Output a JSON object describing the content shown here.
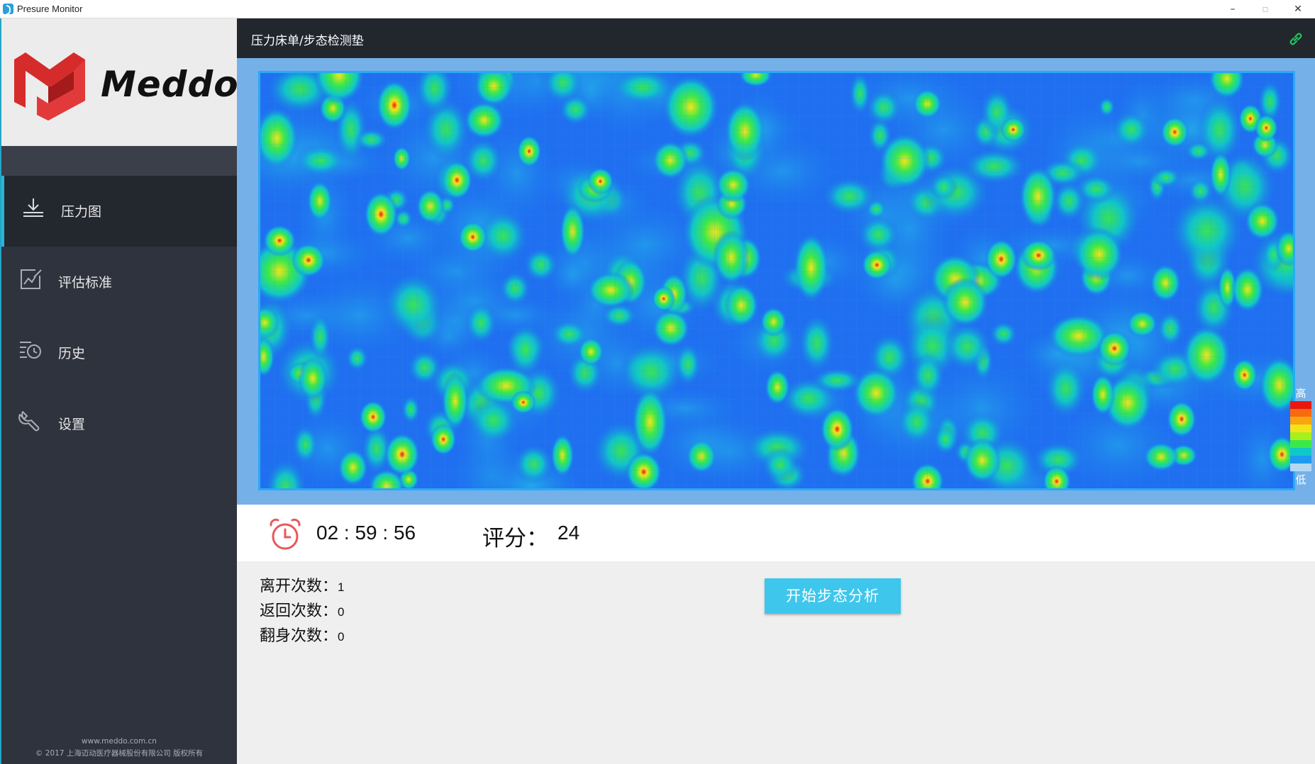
{
  "window": {
    "title": "Presure Monitor",
    "controls": {
      "minimize": "–",
      "maximize": "▫",
      "close": "✕"
    }
  },
  "sidebar": {
    "logo_text": "Meddo",
    "items": [
      {
        "label": "压力图",
        "icon": "download-tray-icon",
        "active": true
      },
      {
        "label": "评估标准",
        "icon": "edit-chart-icon",
        "active": false
      },
      {
        "label": "历史",
        "icon": "history-clock-icon",
        "active": false
      },
      {
        "label": "设置",
        "icon": "wrench-icon",
        "active": false
      }
    ],
    "footer": {
      "website": "www.meddo.com.cn",
      "copyright": "© 2017  上海迈动医疗器械股份有限公司 版权所有"
    }
  },
  "header": {
    "title": "压力床单/步态检测垫",
    "link_icon": "link-icon"
  },
  "heatmap": {
    "legend_high": "高",
    "legend_low": "低",
    "legend_colors": [
      "#e8180e",
      "#f96a10",
      "#f9a50e",
      "#f5e31a",
      "#a7ef1d",
      "#3be84a",
      "#10c8c8",
      "#1d9bf0",
      "#b4d7f2"
    ]
  },
  "status": {
    "timer": "02 : 59 : 56",
    "score_label": "评分：",
    "score_value": "24",
    "timer_icon": "alarm-clock-icon"
  },
  "counts": [
    {
      "label": "离开次数：",
      "value": "1"
    },
    {
      "label": "返回次数：",
      "value": "0"
    },
    {
      "label": "翻身次数：",
      "value": "0"
    }
  ],
  "gait_button_label": "开始步态分析",
  "colors": {
    "accent": "#3fc6ec",
    "sidebar": "#2f333d",
    "header": "#22262d",
    "alarm": "#e8585a"
  }
}
